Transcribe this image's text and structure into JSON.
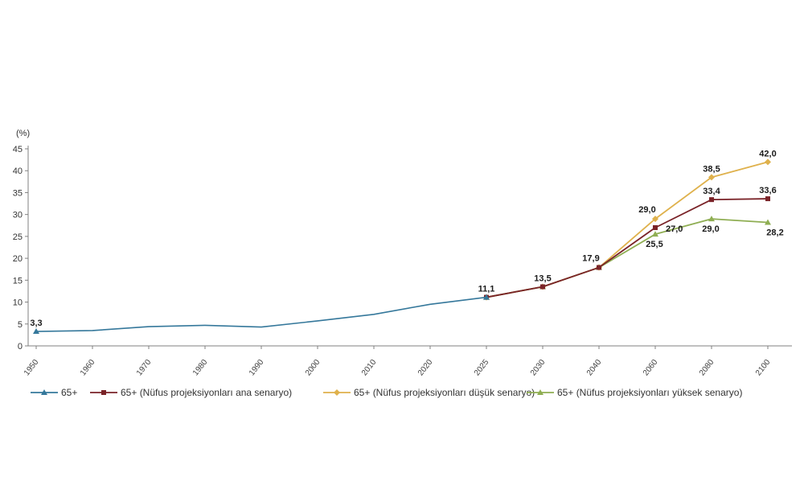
{
  "chart_data": {
    "type": "line",
    "unit_label": "(%)",
    "categories": [
      "1950",
      "1960",
      "1970",
      "1980",
      "1990",
      "2000",
      "2010",
      "2020",
      "2025",
      "2030",
      "2040",
      "2060",
      "2080",
      "2100"
    ],
    "ylim": [
      0,
      45
    ],
    "ytick_step": 5,
    "yticks": [
      0,
      5,
      10,
      15,
      20,
      25,
      30,
      35,
      40,
      45
    ],
    "grid": false,
    "legend_position": "bottom",
    "axis_color": "#808080",
    "label_color": "#1a1a1a",
    "series": [
      {
        "name": "65+",
        "color": "#35789B",
        "marker": "triangle",
        "marker_points": "ends",
        "line_width": 1.6,
        "x": [
          "1950",
          "1960",
          "1970",
          "1980",
          "1990",
          "2000",
          "2010",
          "2020",
          "2025"
        ],
        "values": [
          3.3,
          3.5,
          4.4,
          4.7,
          4.3,
          5.7,
          7.2,
          9.5,
          11.1
        ]
      },
      {
        "name": "65+ (Nüfus projeksiyonları düşük senaryo)",
        "color": "#DFB14C",
        "marker": "diamond",
        "marker_points": "all",
        "line_width": 1.8,
        "x": [
          "2025",
          "2030",
          "2040",
          "2060",
          "2080",
          "2100"
        ],
        "values": [
          11.1,
          13.5,
          17.9,
          29.0,
          38.5,
          42.0
        ]
      },
      {
        "name": "65+ (Nüfus projeksiyonları yüksek senaryo)",
        "color": "#8FAE53",
        "marker": "triangle",
        "marker_points": "all",
        "line_width": 1.8,
        "x": [
          "2025",
          "2030",
          "2040",
          "2060",
          "2080",
          "2100"
        ],
        "values": [
          11.1,
          13.5,
          17.9,
          25.5,
          29.0,
          28.2
        ]
      },
      {
        "name": "65+ (Nüfus projeksiyonları ana senaryo)",
        "color": "#7A2328",
        "marker": "square",
        "marker_points": "all",
        "line_width": 1.8,
        "x": [
          "2025",
          "2030",
          "2040",
          "2060",
          "2080",
          "2100"
        ],
        "values": [
          11.1,
          13.5,
          17.9,
          27.0,
          33.4,
          33.6
        ]
      }
    ],
    "legend_order": [
      0,
      3,
      1,
      2
    ],
    "point_labels": [
      {
        "series": 0,
        "x": "1950",
        "text": "3,3",
        "pos": "above"
      },
      {
        "series": 0,
        "x": "2025",
        "text": "11,1",
        "pos": "above"
      },
      {
        "series": 3,
        "x": "2030",
        "text": "13,5",
        "pos": "above"
      },
      {
        "series": 3,
        "x": "2040",
        "text": "17,9",
        "pos": "above-left"
      },
      {
        "series": 1,
        "x": "2060",
        "text": "29,0",
        "pos": "above-left"
      },
      {
        "series": 3,
        "x": "2060",
        "text": "27,0",
        "pos": "right"
      },
      {
        "series": 2,
        "x": "2060",
        "text": "25,5",
        "pos": "below"
      },
      {
        "series": 1,
        "x": "2080",
        "text": "38,5",
        "pos": "above"
      },
      {
        "series": 3,
        "x": "2080",
        "text": "33,4",
        "pos": "above"
      },
      {
        "series": 2,
        "x": "2080",
        "text": "29,0",
        "pos": "below"
      },
      {
        "series": 1,
        "x": "2100",
        "text": "42,0",
        "pos": "above"
      },
      {
        "series": 3,
        "x": "2100",
        "text": "33,6",
        "pos": "above"
      },
      {
        "series": 2,
        "x": "2100",
        "text": "28,2",
        "pos": "below-right"
      }
    ]
  }
}
